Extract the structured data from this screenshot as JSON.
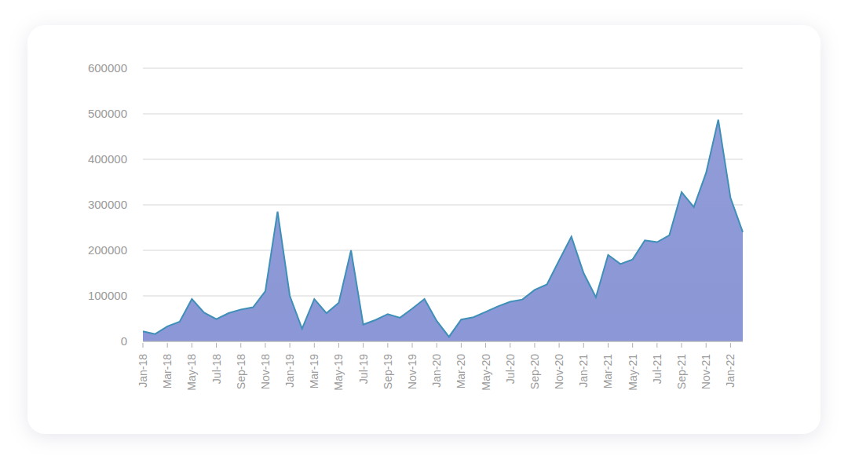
{
  "chart_data": {
    "type": "area",
    "categories": [
      "Jan-18",
      null,
      "Mar-18",
      null,
      "May-18",
      null,
      "Jul-18",
      null,
      "Sep-18",
      null,
      "Nov-18",
      null,
      "Jan-19",
      null,
      "Mar-19",
      null,
      "May-19",
      null,
      "Jul-19",
      null,
      "Sep-19",
      null,
      "Nov-19",
      null,
      "Jan-20",
      null,
      "Mar-20",
      null,
      "May-20",
      null,
      "Jul-20",
      null,
      "Sep-20",
      null,
      "Nov-20",
      null,
      "Jan-21",
      null,
      "Mar-21",
      null,
      "May-21",
      null,
      "Jul-21",
      null,
      "Sep-21",
      null,
      "Nov-21",
      null,
      "Jan-22",
      null
    ],
    "values": [
      22000,
      16000,
      33000,
      43000,
      93000,
      63000,
      49000,
      62000,
      70000,
      75000,
      110000,
      285000,
      100000,
      28000,
      93000,
      62000,
      85000,
      200000,
      37000,
      47000,
      60000,
      52000,
      72000,
      93000,
      45000,
      10000,
      48000,
      53000,
      65000,
      77000,
      87000,
      92000,
      113000,
      125000,
      178000,
      230000,
      150000,
      97000,
      190000,
      170000,
      180000,
      222000,
      218000,
      233000,
      328000,
      295000,
      370000,
      487000,
      315000,
      240000
    ],
    "color": "#8b97d6",
    "ylim": [
      0,
      600000
    ],
    "yticks": [
      0,
      100000,
      200000,
      300000,
      400000,
      500000,
      600000
    ],
    "grid": true
  }
}
